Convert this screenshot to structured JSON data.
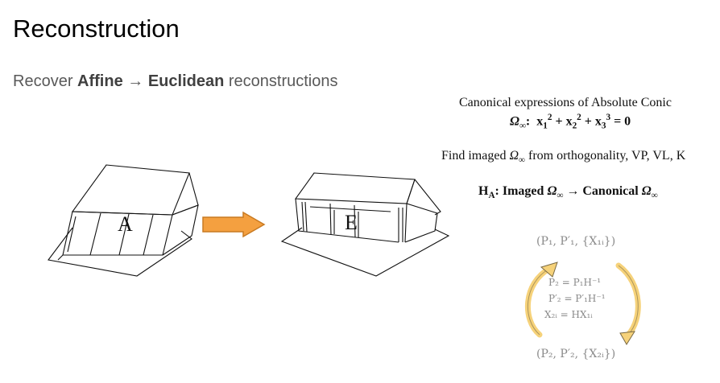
{
  "slide": {
    "title": "Reconstruction",
    "subtitle_prefix": "Recover ",
    "subtitle_b1": "Affine",
    "subtitle_arrow": " → ",
    "subtitle_b2": "Euclidean",
    "subtitle_suffix": " reconstructions"
  },
  "houses": {
    "left_label": "A",
    "right_label": "E",
    "arrow_color": "#f4a040"
  },
  "notes": {
    "line1": "Canonical expressions of Absolute Conic",
    "omega": "Ω",
    "inf": "∞",
    "x": "x",
    "eq_zero": " = 0",
    "line3_a": "Find imaged ",
    "line3_b": " from orthogonality, VP, VL, K",
    "ha_H": "H",
    "ha_A": "A",
    "ha_mid": ": Imaged ",
    "ha_arrow": " → Canonical "
  },
  "cycle": {
    "top_eq": "(P₁, P′₁, {X₁ᵢ})",
    "row1_l": "P₂",
    "row1_r": "= P₁H⁻¹",
    "row2_l": "P′₂",
    "row2_r": "= P′₁H⁻¹",
    "row3_l": "X₂ᵢ",
    "row3_r": "= HX₁ᵢ",
    "bottom_eq": "(P₂, P′₂, {X₂ᵢ})",
    "arrow_color": "#f6d27a"
  }
}
